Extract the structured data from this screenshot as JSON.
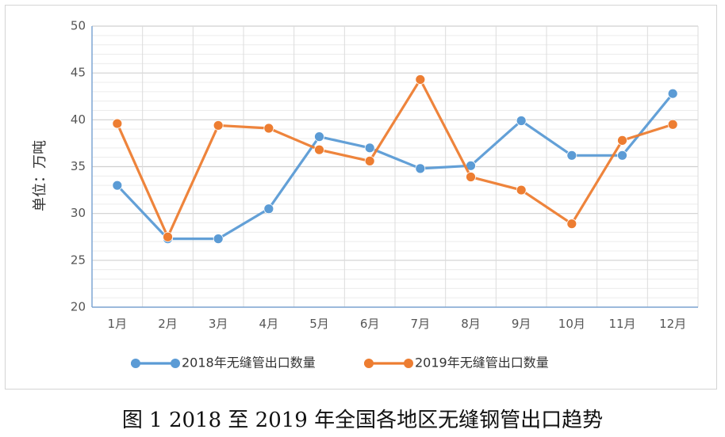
{
  "chart_data": {
    "type": "line",
    "categories": [
      "1月",
      "2月",
      "3月",
      "4月",
      "5月",
      "6月",
      "7月",
      "8月",
      "9月",
      "10月",
      "11月",
      "12月"
    ],
    "series": [
      {
        "name": "2018年无缝管出口数量",
        "color": "#5b9bd5",
        "values": [
          33.0,
          27.3,
          27.3,
          30.5,
          38.2,
          37.0,
          34.8,
          35.1,
          39.9,
          36.2,
          36.2,
          42.8
        ]
      },
      {
        "name": "2019年无缝管出口数量",
        "color": "#ed7d31",
        "values": [
          39.6,
          27.5,
          39.4,
          39.1,
          36.8,
          35.6,
          44.3,
          33.9,
          32.5,
          28.9,
          37.8,
          39.5
        ]
      }
    ],
    "ylabel": "单位：万吨",
    "ylim": [
      20,
      50
    ],
    "yticks": [
      20,
      25,
      30,
      35,
      40,
      45,
      50
    ],
    "grid": true,
    "legend_position": "bottom"
  },
  "caption": "图 1 2018 至 2019 年全国各地区无缝钢管出口趋势"
}
